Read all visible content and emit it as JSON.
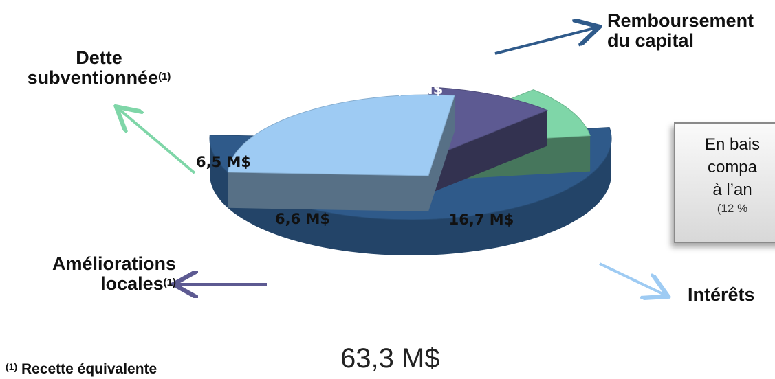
{
  "chart_data": {
    "type": "pie",
    "title": "",
    "total_label": "63,3 M$",
    "slices": [
      {
        "name": "Remboursement du capital",
        "value": 33.5,
        "value_label": "33,5 M$",
        "color": "#2f5a8a"
      },
      {
        "name": "Intérêts",
        "value": 16.7,
        "value_label": "16,7 M$",
        "color": "#9ecbf3"
      },
      {
        "name": "Améliorations locales",
        "value": 6.6,
        "value_label": "6,6 M$",
        "color": "#5d5a92"
      },
      {
        "name": "Dette subventionnée",
        "value": 6.5,
        "value_label": "6,5 M$",
        "color": "#7fd6a8"
      }
    ]
  },
  "labels": {
    "capital_line1": "Remboursement",
    "capital_line2": "du capital",
    "dette_line1": "Dette",
    "dette_line2": "subventionnée",
    "amelio_line1": "Améliorations",
    "amelio_line2": "locales",
    "interets": "Intérêts",
    "footnote_marker": "(1)"
  },
  "footnote": {
    "marker": "(1)",
    "text": "Recette  équivalente"
  },
  "callout": {
    "line1": "En bais",
    "line2": "compa",
    "line3": "à l’an",
    "line4": "(12 %"
  }
}
